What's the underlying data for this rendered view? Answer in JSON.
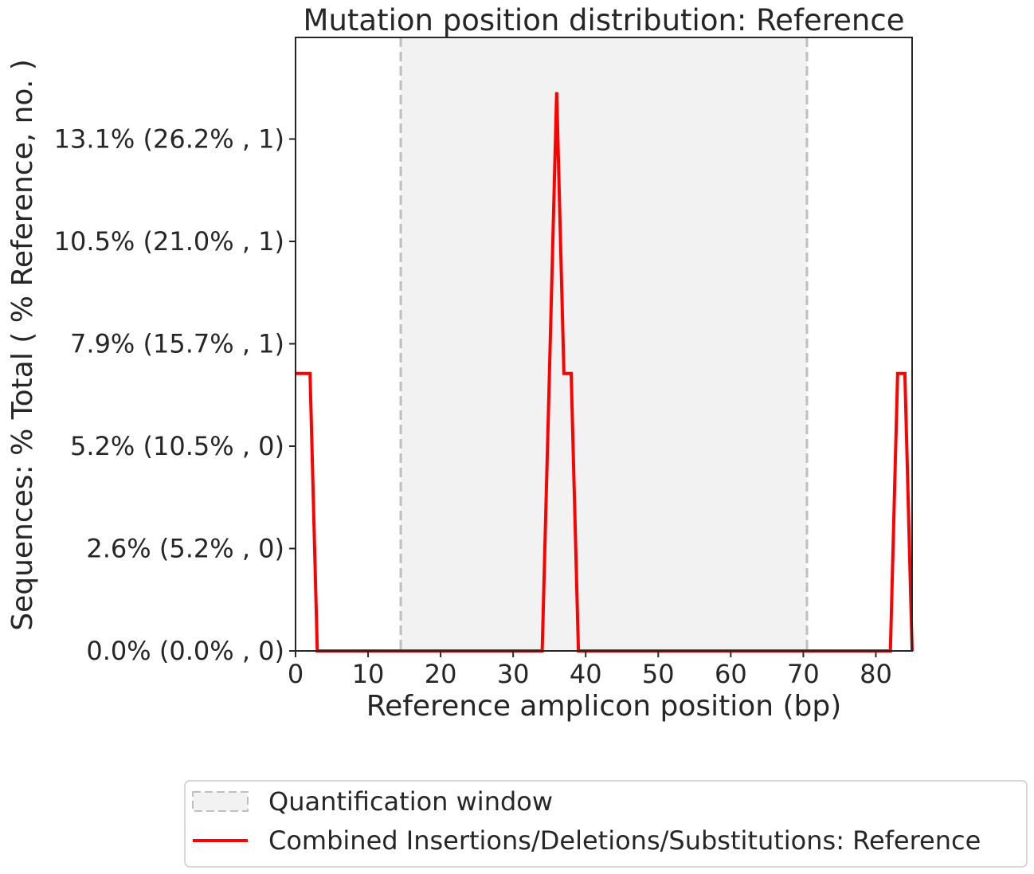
{
  "chart_data": {
    "type": "line",
    "title": "Mutation position distribution: Reference",
    "xlabel": "Reference amplicon position (bp)",
    "ylabel": "Sequences: % Total ( % Reference, no. )",
    "xlim": [
      0,
      85
    ],
    "ylim": [
      0,
      15.7
    ],
    "x_ticks": [
      0,
      10,
      20,
      30,
      40,
      50,
      60,
      70,
      80
    ],
    "x_tick_labels": [
      "0",
      "10",
      "20",
      "30",
      "40",
      "50",
      "60",
      "70",
      "80"
    ],
    "y_ticks": [
      0,
      2.62,
      5.24,
      7.86,
      10.48,
      13.1
    ],
    "y_tick_labels": [
      "0.0% (0.0% , 0)",
      "2.6% (5.2% , 0)",
      "5.2% (10.5% , 0)",
      "7.9% (15.7% , 1)",
      "10.5% (21.0% , 1)",
      "13.1% (26.2% , 1)"
    ],
    "quantification_window": [
      14.5,
      70.5
    ],
    "series": [
      {
        "name": "Combined Insertions/Deletions/Substitutions: Reference",
        "color": "#ff0000",
        "x": [
          0,
          1,
          2,
          3,
          4,
          34,
          35,
          36,
          37,
          38,
          39,
          40,
          82,
          83,
          84,
          85
        ],
        "y": [
          7.1,
          7.1,
          7.1,
          0,
          0,
          0,
          7.1,
          14.3,
          7.1,
          7.1,
          0,
          0,
          0,
          7.1,
          7.1,
          0
        ]
      }
    ],
    "legend": {
      "placement": "below",
      "entries": [
        {
          "label": "Quantification window",
          "kind": "patch"
        },
        {
          "label": "Combined Insertions/Deletions/Substitutions: Reference",
          "kind": "line"
        }
      ]
    },
    "grid": false,
    "colors": {
      "window_fill": "#f2f2f2",
      "window_edge": "#bfbfbf",
      "line": "#ff0000",
      "axis": "#262626"
    }
  }
}
